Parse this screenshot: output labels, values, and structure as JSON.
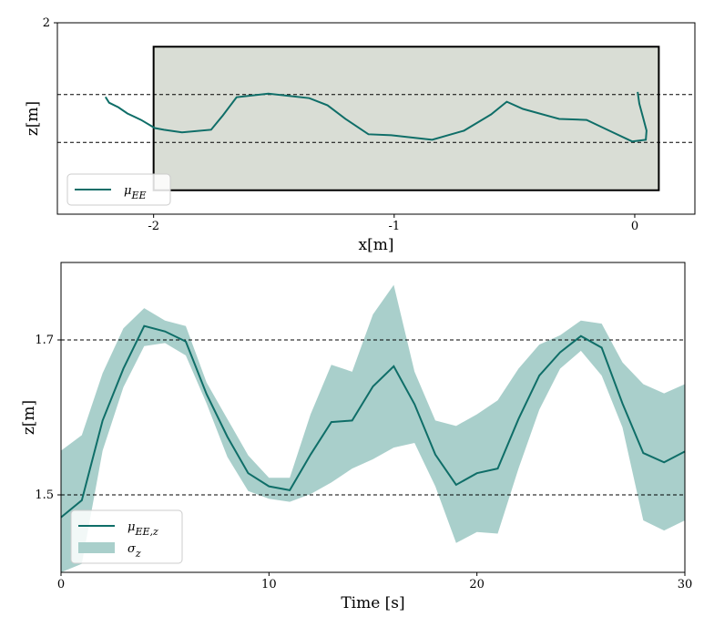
{
  "chart_data": [
    {
      "type": "line",
      "xlabel": "x[m]",
      "ylabel": "z[m]",
      "xlim": [
        -2.4,
        0.25
      ],
      "ylim": [
        1.2,
        2.0
      ],
      "xticks": [
        -2,
        -1,
        0
      ],
      "yticks": [
        2
      ],
      "rectangle": {
        "x": [
          -2,
          0.1
        ],
        "y": [
          1.3,
          1.9
        ],
        "fill": "#d9ddd5",
        "edge": "#000000"
      },
      "hlines": [
        1.5,
        1.7
      ],
      "legend": "lower left",
      "series": [
        {
          "name": "μEE",
          "color": "#0f6e68",
          "x": [
            -2.2,
            -2.185,
            -2.147,
            -2.109,
            -2.052,
            -1.995,
            -1.957,
            -1.882,
            -1.761,
            -1.712,
            -1.655,
            -1.523,
            -1.353,
            -1.277,
            -1.202,
            -1.107,
            -1.012,
            -0.842,
            -0.71,
            -0.597,
            -0.532,
            -0.465,
            -0.314,
            -0.2,
            -0.106,
            -0.011,
            0.046,
            0.049,
            0.034,
            0.019,
            0.012
          ],
          "values": [
            1.69,
            1.666,
            1.647,
            1.621,
            1.594,
            1.56,
            1.553,
            1.542,
            1.553,
            1.613,
            1.689,
            1.704,
            1.685,
            1.655,
            1.598,
            1.534,
            1.53,
            1.511,
            1.549,
            1.617,
            1.67,
            1.64,
            1.598,
            1.594,
            1.549,
            1.504,
            1.511,
            1.549,
            1.606,
            1.662,
            1.711
          ]
        }
      ]
    },
    {
      "type": "line",
      "xlabel": "Time [s]",
      "ylabel": "z[m]",
      "xlim": [
        0,
        30
      ],
      "ylim": [
        1.4,
        1.8
      ],
      "xticks": [
        0,
        10,
        20,
        30
      ],
      "yticks": [
        1.5,
        1.7
      ],
      "hlines": [
        1.5,
        1.7
      ],
      "legend": "lower left",
      "x": [
        0,
        1,
        2,
        3,
        4,
        5,
        6,
        7,
        8,
        9,
        10,
        11,
        12,
        13,
        14,
        15,
        16,
        17,
        18,
        19,
        20,
        21,
        22,
        23,
        24,
        25,
        26,
        27,
        28,
        29,
        30
      ],
      "series": [
        {
          "name": "μEE,z",
          "color": "#0f6e68",
          "values": [
            1.471,
            1.493,
            1.596,
            1.663,
            1.718,
            1.711,
            1.698,
            1.63,
            1.575,
            1.528,
            1.511,
            1.506,
            1.552,
            1.594,
            1.596,
            1.64,
            1.666,
            1.617,
            1.552,
            1.513,
            1.528,
            1.534,
            1.598,
            1.654,
            1.684,
            1.705,
            1.69,
            1.618,
            1.554,
            1.542,
            1.556
          ]
        },
        {
          "name": "σz",
          "type": "band",
          "color": "#a9cfcb",
          "lower": [
            1.4,
            1.411,
            1.557,
            1.639,
            1.692,
            1.696,
            1.68,
            1.618,
            1.549,
            1.505,
            1.495,
            1.491,
            1.501,
            1.516,
            1.534,
            1.546,
            1.561,
            1.567,
            1.511,
            1.438,
            1.452,
            1.45,
            1.534,
            1.61,
            1.663,
            1.686,
            1.654,
            1.587,
            1.467,
            1.454,
            1.467
          ],
          "upper": [
            1.557,
            1.577,
            1.657,
            1.715,
            1.741,
            1.725,
            1.718,
            1.645,
            1.598,
            1.551,
            1.522,
            1.522,
            1.604,
            1.668,
            1.659,
            1.733,
            1.771,
            1.659,
            1.596,
            1.589,
            1.604,
            1.622,
            1.663,
            1.694,
            1.706,
            1.725,
            1.721,
            1.671,
            1.643,
            1.631,
            1.643
          ]
        }
      ]
    }
  ]
}
